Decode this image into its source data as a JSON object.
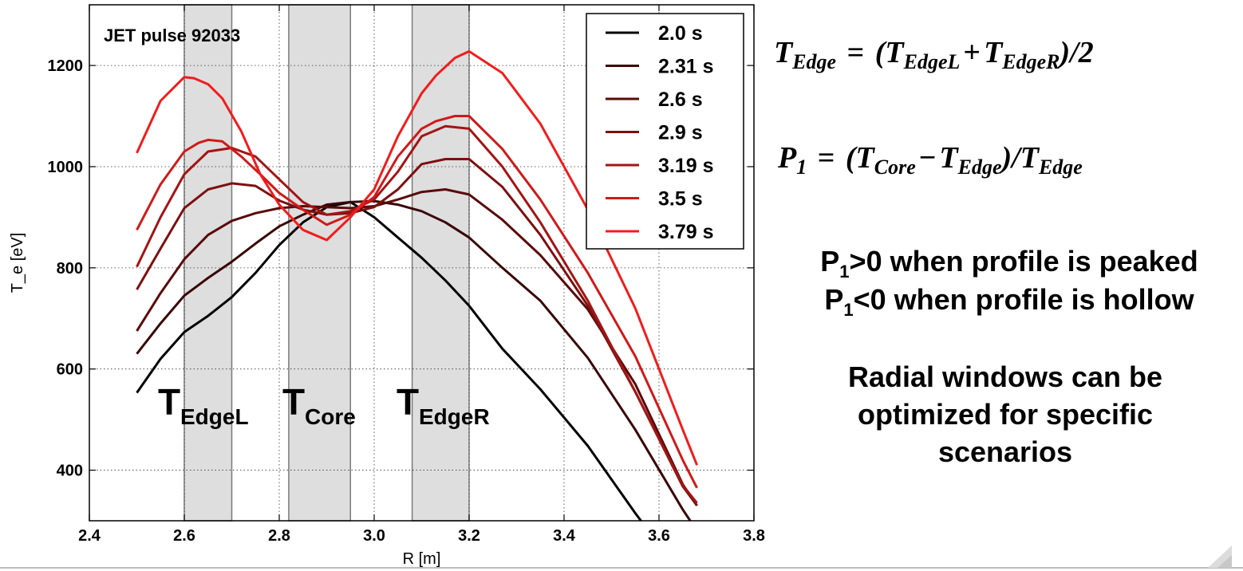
{
  "chart_data": {
    "type": "line",
    "title": "JET pulse 92033",
    "xlabel": "R [m]",
    "ylabel": "T_e [eV]",
    "xlim": [
      2.4,
      3.8
    ],
    "ylim": [
      300,
      1320
    ],
    "xticks": [
      2.4,
      2.6,
      2.8,
      3.0,
      3.2,
      3.4,
      3.6,
      3.8
    ],
    "xtick_labels": [
      "2.4",
      "2.6",
      "2.8",
      "3.0",
      "3.2",
      "3.4",
      "3.6",
      "3.8"
    ],
    "yticks": [
      400,
      600,
      800,
      1000,
      1200
    ],
    "ytick_labels": [
      "400",
      "600",
      "800",
      "1000",
      "1200"
    ],
    "grid": true,
    "legend_position": "top-right",
    "windows": [
      {
        "label": "T",
        "sub": "EdgeL",
        "x0": 2.6,
        "x1": 2.7
      },
      {
        "label": "T",
        "sub": "Core",
        "x0": 2.82,
        "x1": 2.95
      },
      {
        "label": "T",
        "sub": "EdgeR",
        "x0": 3.08,
        "x1": 3.2
      }
    ],
    "series": [
      {
        "name": "2.0 s",
        "color": "#000000",
        "x": [
          2.5,
          2.55,
          2.6,
          2.65,
          2.7,
          2.75,
          2.8,
          2.85,
          2.9,
          2.95,
          3.0,
          3.05,
          3.1,
          3.15,
          3.2,
          3.27,
          3.35,
          3.45,
          3.55,
          3.57
        ],
        "y": [
          553,
          620,
          673,
          705,
          742,
          790,
          845,
          890,
          920,
          930,
          900,
          860,
          820,
          775,
          725,
          640,
          560,
          448,
          315,
          290
        ]
      },
      {
        "name": "2.31 s",
        "color": "#3a0606",
        "x": [
          2.5,
          2.55,
          2.6,
          2.65,
          2.7,
          2.75,
          2.8,
          2.85,
          2.9,
          2.95,
          3.0,
          3.05,
          3.1,
          3.15,
          3.2,
          3.27,
          3.35,
          3.45,
          3.55,
          3.65,
          3.68
        ],
        "y": [
          630,
          690,
          745,
          780,
          812,
          848,
          882,
          905,
          925,
          930,
          932,
          925,
          912,
          890,
          860,
          800,
          735,
          622,
          480,
          322,
          280
        ]
      },
      {
        "name": "2.6 s",
        "color": "#5a0a0a",
        "x": [
          2.5,
          2.55,
          2.6,
          2.65,
          2.7,
          2.75,
          2.8,
          2.85,
          2.9,
          2.95,
          3.0,
          3.05,
          3.1,
          3.15,
          3.2,
          3.27,
          3.35,
          3.45,
          3.55,
          3.65,
          3.68
        ],
        "y": [
          675,
          750,
          817,
          865,
          893,
          908,
          918,
          922,
          920,
          918,
          922,
          935,
          950,
          955,
          945,
          895,
          825,
          718,
          570,
          372,
          330
        ]
      },
      {
        "name": "2.9 s",
        "color": "#7d1010",
        "x": [
          2.5,
          2.55,
          2.6,
          2.65,
          2.7,
          2.75,
          2.8,
          2.85,
          2.9,
          2.95,
          3.0,
          3.05,
          3.1,
          3.15,
          3.2,
          3.27,
          3.35,
          3.45,
          3.55,
          3.65,
          3.68
        ],
        "y": [
          757,
          838,
          918,
          955,
          967,
          962,
          933,
          915,
          905,
          908,
          920,
          955,
          1005,
          1015,
          1015,
          960,
          865,
          725,
          555,
          368,
          330
        ]
      },
      {
        "name": "3.19 s",
        "color": "#a31414",
        "x": [
          2.5,
          2.55,
          2.6,
          2.65,
          2.7,
          2.75,
          2.8,
          2.85,
          2.9,
          2.95,
          3.0,
          3.05,
          3.1,
          3.15,
          3.2,
          3.27,
          3.35,
          3.45,
          3.55,
          3.65,
          3.68
        ],
        "y": [
          802,
          900,
          985,
          1030,
          1037,
          1020,
          975,
          930,
          905,
          912,
          935,
          990,
          1060,
          1080,
          1075,
          1000,
          890,
          735,
          555,
          370,
          335
        ]
      },
      {
        "name": "3.5 s",
        "color": "#cf1a1a",
        "x": [
          2.5,
          2.55,
          2.6,
          2.63,
          2.65,
          2.68,
          2.72,
          2.76,
          2.8,
          2.85,
          2.9,
          2.95,
          3.0,
          3.05,
          3.1,
          3.13,
          3.17,
          3.2,
          3.27,
          3.35,
          3.45,
          3.55,
          3.65,
          3.68
        ],
        "y": [
          875,
          965,
          1030,
          1047,
          1053,
          1050,
          1020,
          985,
          948,
          915,
          885,
          905,
          940,
          1020,
          1075,
          1090,
          1100,
          1100,
          1035,
          935,
          790,
          625,
          420,
          365
        ]
      },
      {
        "name": "3.79 s",
        "color": "#f21c1c",
        "x": [
          2.5,
          2.55,
          2.6,
          2.62,
          2.65,
          2.68,
          2.72,
          2.76,
          2.8,
          2.85,
          2.9,
          2.95,
          3.0,
          3.05,
          3.1,
          3.13,
          3.17,
          3.2,
          3.27,
          3.35,
          3.45,
          3.55,
          3.65,
          3.68
        ],
        "y": [
          1027,
          1130,
          1177,
          1175,
          1163,
          1135,
          1070,
          985,
          925,
          875,
          855,
          900,
          955,
          1060,
          1145,
          1180,
          1215,
          1228,
          1185,
          1085,
          915,
          720,
          480,
          410
        ]
      }
    ]
  },
  "equations": {
    "t_edge": {
      "lhs": "T",
      "lhs_sub": "Edge",
      "eq": "=",
      "a": "(T",
      "a_sub": "EdgeL",
      "plus": "+",
      "b": "T",
      "b_sub": "EdgeR",
      "tail": ")/2"
    },
    "p1": {
      "lhs": "P",
      "lhs_sub": "1",
      "eq": "=",
      "a": "(T",
      "a_sub": "Core",
      "minus": "−",
      "b": "T",
      "b_sub": "Edge",
      "mid": ")/",
      "c": "T",
      "c_sub": "Edge"
    }
  },
  "notes": {
    "line1": {
      "p": "P",
      "sub": "1",
      "rest": ">0 when profile is peaked"
    },
    "line2": {
      "p": "P",
      "sub": "1",
      "rest": "<0 when profile is hollow"
    },
    "windows_text": [
      "Radial windows can be",
      "optimized for specific",
      "scenarios"
    ]
  }
}
